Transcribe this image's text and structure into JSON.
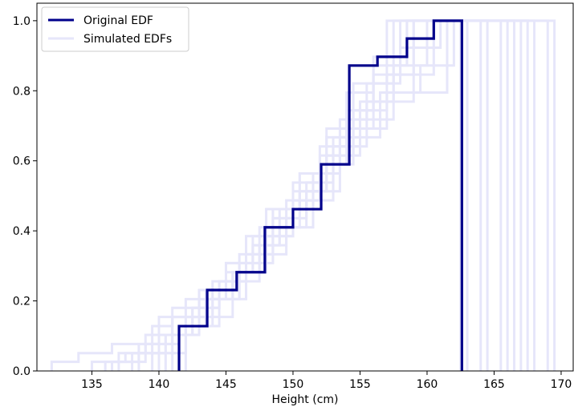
{
  "chart_data": {
    "type": "line",
    "title": "",
    "xlabel": "Height (cm)",
    "ylabel": "",
    "xlim": [
      130.9,
      170.9
    ],
    "ylim": [
      0.0,
      1.05
    ],
    "x_ticks": [
      "135",
      "140",
      "145",
      "150",
      "155",
      "160",
      "165",
      "170"
    ],
    "y_ticks": [
      "0.0",
      "0.2",
      "0.4",
      "0.6",
      "0.8",
      "1.0"
    ],
    "grid": false,
    "legend": {
      "position": "top-left",
      "entries": [
        "Original EDF",
        "Simulated EDFs"
      ]
    },
    "colors": {
      "original": "#00008b",
      "simulated": "#e6e6fa"
    },
    "series": [
      {
        "name": "Original EDF",
        "style": "step",
        "x": [
          141.5,
          143.6,
          145.8,
          147.9,
          150.0,
          152.1,
          154.2,
          156.3,
          158.5,
          160.5,
          162.6
        ],
        "y": [
          0.128,
          0.231,
          0.282,
          0.41,
          0.462,
          0.59,
          0.872,
          0.897,
          0.949,
          1.0,
          0.0
        ]
      },
      {
        "name": "Simulated EDFs",
        "style": "step",
        "runs": [
          {
            "x": [
              132.0,
              134.0,
              136.5,
              139.5,
              141.0,
              143.0,
              145.5,
              147.0,
              149.0,
              151.0,
              153.0,
              154.5,
              157.0,
              159.5,
              162.0,
              169.5
            ],
            "y": [
              0.026,
              0.051,
              0.077,
              0.128,
              0.18,
              0.231,
              0.282,
              0.359,
              0.41,
              0.487,
              0.59,
              0.692,
              0.795,
              0.872,
              1.0,
              0.0
            ]
          },
          {
            "x": [
              136.0,
              138.5,
              140.0,
              142.0,
              144.0,
              146.0,
              147.5,
              149.5,
              151.5,
              153.0,
              155.0,
              157.5,
              160.0,
              168.0
            ],
            "y": [
              0.026,
              0.077,
              0.154,
              0.205,
              0.256,
              0.333,
              0.41,
              0.487,
              0.564,
              0.667,
              0.769,
              0.872,
              1.0,
              0.0
            ]
          },
          {
            "x": [
              138.0,
              140.5,
              142.5,
              144.5,
              146.5,
              148.5,
              150.0,
              152.0,
              153.5,
              155.5,
              157.0,
              166.5
            ],
            "y": [
              0.051,
              0.103,
              0.18,
              0.256,
              0.333,
              0.436,
              0.513,
              0.615,
              0.718,
              0.821,
              1.0,
              0.0
            ]
          },
          {
            "x": [
              135.0,
              137.5,
              139.0,
              141.0,
              143.0,
              145.0,
              147.0,
              149.0,
              151.0,
              153.0,
              155.0,
              157.0,
              159.0,
              164.5
            ],
            "y": [
              0.026,
              0.051,
              0.103,
              0.154,
              0.205,
              0.282,
              0.359,
              0.462,
              0.538,
              0.641,
              0.744,
              0.846,
              1.0,
              0.0
            ]
          },
          {
            "x": [
              139.5,
              141.5,
              143.5,
              145.0,
              147.0,
              148.0,
              150.5,
              152.5,
              154.0,
              156.0,
              158.5,
              167.5
            ],
            "y": [
              0.077,
              0.128,
              0.231,
              0.308,
              0.385,
              0.462,
              0.564,
              0.667,
              0.795,
              0.897,
              1.0,
              0.0
            ]
          },
          {
            "x": [
              137.0,
              140.0,
              142.0,
              144.0,
              146.0,
              148.0,
              150.0,
              151.5,
              153.5,
              156.5,
              161.5,
              163.0
            ],
            "y": [
              0.051,
              0.103,
              0.154,
              0.205,
              0.282,
              0.385,
              0.462,
              0.564,
              0.667,
              0.795,
              1.0,
              0.0
            ]
          },
          {
            "x": [
              140.0,
              142.0,
              144.5,
              146.5,
              148.5,
              150.5,
              152.5,
              154.5,
              156.0,
              158.0,
              165.5
            ],
            "y": [
              0.051,
              0.128,
              0.205,
              0.308,
              0.41,
              0.513,
              0.615,
              0.744,
              0.846,
              1.0,
              0.0
            ]
          },
          {
            "x": [
              141.0,
              143.0,
              145.5,
              147.5,
              149.5,
              151.0,
              152.5,
              155.0,
              157.5,
              160.5,
              169.0
            ],
            "y": [
              0.103,
              0.154,
              0.256,
              0.359,
              0.436,
              0.513,
              0.615,
              0.718,
              0.846,
              1.0,
              0.0
            ]
          },
          {
            "x": [
              138.5,
              141.5,
              143.5,
              145.5,
              147.5,
              149.5,
              151.5,
              153.5,
              155.5,
              159.0,
              164.0
            ],
            "y": [
              0.051,
              0.128,
              0.205,
              0.282,
              0.333,
              0.41,
              0.513,
              0.641,
              0.769,
              1.0,
              0.0
            ]
          },
          {
            "x": [
              142.0,
              144.0,
              146.0,
              148.0,
              150.0,
              152.0,
              154.0,
              156.0,
              158.0,
              161.0,
              166.0
            ],
            "y": [
              0.128,
              0.205,
              0.308,
              0.385,
              0.487,
              0.59,
              0.692,
              0.821,
              0.923,
              1.0,
              0.0
            ]
          },
          {
            "x": [
              136.5,
              139.0,
              141.0,
              143.0,
              145.0,
              146.5,
              148.5,
              150.5,
              152.5,
              154.5,
              157.5,
              162.5
            ],
            "y": [
              0.026,
              0.077,
              0.154,
              0.231,
              0.308,
              0.385,
              0.462,
              0.564,
              0.692,
              0.821,
              1.0,
              0.0
            ]
          },
          {
            "x": [
              140.5,
              142.5,
              144.5,
              146.5,
              148.5,
              150.0,
              152.0,
              154.0,
              156.0,
              158.5,
              167.0
            ],
            "y": [
              0.103,
              0.18,
              0.256,
              0.333,
              0.436,
              0.538,
              0.641,
              0.744,
              0.872,
              1.0,
              0.0
            ]
          }
        ]
      }
    ]
  }
}
